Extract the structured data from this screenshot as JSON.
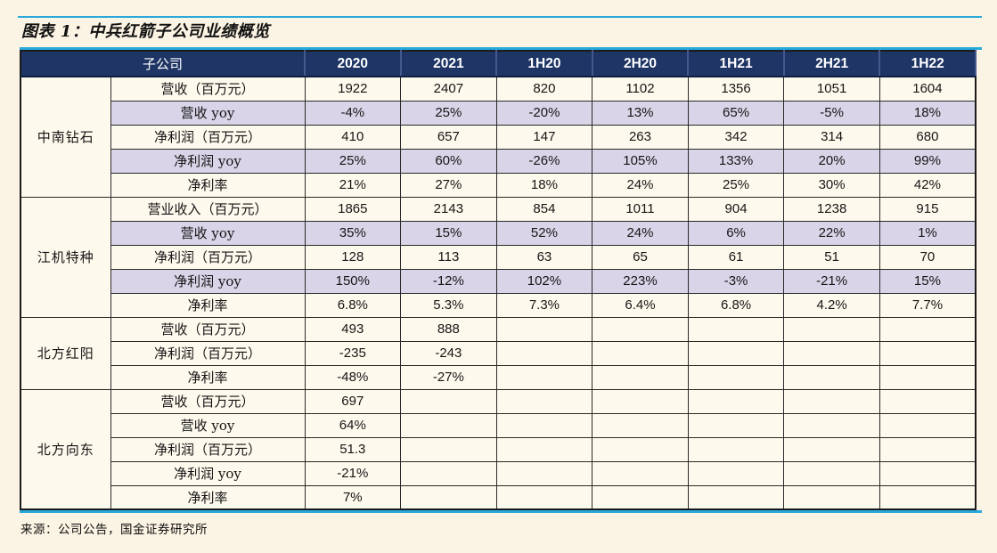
{
  "page": {
    "title": "图表 1：中兵红箭子公司业绩概览",
    "source": "来源：公司公告，国金证券研究所"
  },
  "colors": {
    "accent_blue": "#29a8dc",
    "header_navy": "#1e3565",
    "header_separator": "#44588d",
    "row_cream": "#fdf9ec",
    "row_lavender": "#d9d4e7",
    "page_background": "#fbf3e3",
    "border_dark": "#2a2a2a"
  },
  "table": {
    "subsidiary_header": "子公司",
    "periods": [
      "2020",
      "2021",
      "1H20",
      "2H20",
      "1H21",
      "2H21",
      "1H22"
    ],
    "groups": [
      {
        "company": "中南钻石",
        "rows": [
          {
            "metric": "营收（百万元）",
            "shade": false,
            "values": [
              "1922",
              "2407",
              "820",
              "1102",
              "1356",
              "1051",
              "1604"
            ]
          },
          {
            "metric": "营收 yoy",
            "shade": true,
            "values": [
              "-4%",
              "25%",
              "-20%",
              "13%",
              "65%",
              "-5%",
              "18%"
            ]
          },
          {
            "metric": "净利润（百万元）",
            "shade": false,
            "values": [
              "410",
              "657",
              "147",
              "263",
              "342",
              "314",
              "680"
            ]
          },
          {
            "metric": "净利润 yoy",
            "shade": true,
            "values": [
              "25%",
              "60%",
              "-26%",
              "105%",
              "133%",
              "20%",
              "99%"
            ]
          },
          {
            "metric": "净利率",
            "shade": false,
            "values": [
              "21%",
              "27%",
              "18%",
              "24%",
              "25%",
              "30%",
              "42%"
            ]
          }
        ]
      },
      {
        "company": "江机特种",
        "rows": [
          {
            "metric": "营业收入（百万元）",
            "shade": false,
            "values": [
              "1865",
              "2143",
              "854",
              "1011",
              "904",
              "1238",
              "915"
            ]
          },
          {
            "metric": "营收 yoy",
            "shade": true,
            "values": [
              "35%",
              "15%",
              "52%",
              "24%",
              "6%",
              "22%",
              "1%"
            ]
          },
          {
            "metric": "净利润（百万元）",
            "shade": false,
            "values": [
              "128",
              "113",
              "63",
              "65",
              "61",
              "51",
              "70"
            ]
          },
          {
            "metric": "净利润 yoy",
            "shade": true,
            "values": [
              "150%",
              "-12%",
              "102%",
              "223%",
              "-3%",
              "-21%",
              "15%"
            ]
          },
          {
            "metric": "净利率",
            "shade": false,
            "values": [
              "6.8%",
              "5.3%",
              "7.3%",
              "6.4%",
              "6.8%",
              "4.2%",
              "7.7%"
            ]
          }
        ]
      },
      {
        "company": "北方红阳",
        "rows": [
          {
            "metric": "营收（百万元）",
            "shade": false,
            "values": [
              "493",
              "888",
              "",
              "",
              "",
              "",
              ""
            ]
          },
          {
            "metric": "净利润（百万元）",
            "shade": false,
            "values": [
              "-235",
              "-243",
              "",
              "",
              "",
              "",
              ""
            ]
          },
          {
            "metric": "净利率",
            "shade": false,
            "values": [
              "-48%",
              "-27%",
              "",
              "",
              "",
              "",
              ""
            ]
          }
        ]
      },
      {
        "company": "北方向东",
        "rows": [
          {
            "metric": "营收（百万元）",
            "shade": false,
            "values": [
              "697",
              "",
              "",
              "",
              "",
              "",
              ""
            ]
          },
          {
            "metric": "营收 yoy",
            "shade": false,
            "values": [
              "64%",
              "",
              "",
              "",
              "",
              "",
              ""
            ]
          },
          {
            "metric": "净利润（百万元）",
            "shade": false,
            "values": [
              "51.3",
              "",
              "",
              "",
              "",
              "",
              ""
            ]
          },
          {
            "metric": "净利润 yoy",
            "shade": false,
            "values": [
              "-21%",
              "",
              "",
              "",
              "",
              "",
              ""
            ]
          },
          {
            "metric": "净利率",
            "shade": false,
            "values": [
              "7%",
              "",
              "",
              "",
              "",
              "",
              ""
            ]
          }
        ]
      }
    ]
  }
}
